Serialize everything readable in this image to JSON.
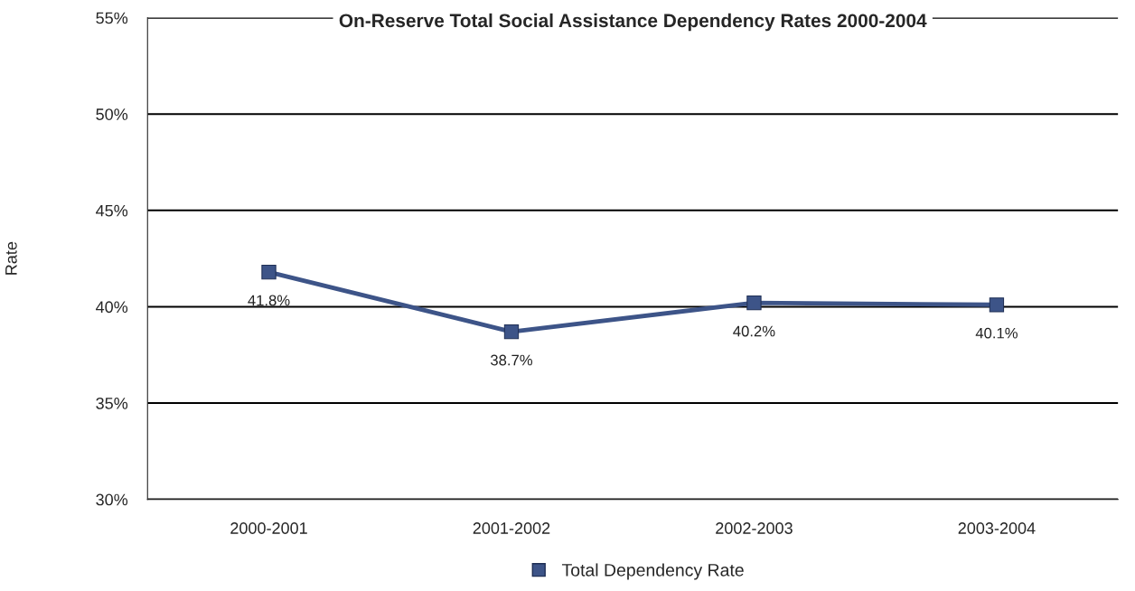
{
  "chart_data": {
    "type": "line",
    "title": "On-Reserve Total Social Assistance Dependency Rates 2000-2004",
    "ylabel": "Rate",
    "categories": [
      "2000-2001",
      "2001-2002",
      "2002-2003",
      "2003-2004"
    ],
    "series": [
      {
        "name": "Total Dependency Rate",
        "color": "#3d5488",
        "values": [
          41.8,
          38.7,
          40.2,
          40.1
        ],
        "value_labels": [
          "41.8%",
          "38.7%",
          "40.2%",
          "40.1%"
        ]
      }
    ],
    "ylim": [
      30,
      55
    ],
    "yticks": [
      {
        "value": 30,
        "label": "30%"
      },
      {
        "value": 35,
        "label": "35%"
      },
      {
        "value": 40,
        "label": "40%"
      },
      {
        "value": 45,
        "label": "45%"
      },
      {
        "value": 50,
        "label": "50%"
      },
      {
        "value": 55,
        "label": "55%"
      }
    ],
    "grid": "y",
    "legend": "bottom",
    "marker": "square",
    "line_style": "solid"
  }
}
